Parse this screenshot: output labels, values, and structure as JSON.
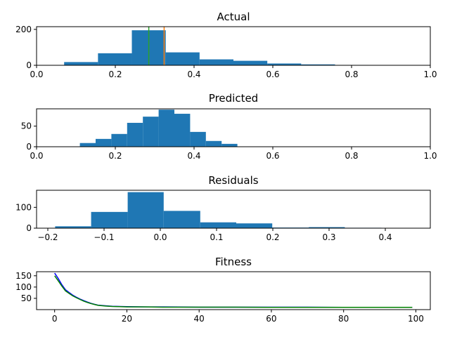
{
  "chart_data": [
    {
      "type": "histogram",
      "title": "Actual",
      "xlim": [
        0,
        1
      ],
      "ylim": [
        0,
        215
      ],
      "xticks": [
        0.0,
        0.2,
        0.4,
        0.6,
        0.8,
        1.0
      ],
      "xtick_labels": [
        "0.0",
        "0.2",
        "0.4",
        "0.6",
        "0.8",
        "1.0"
      ],
      "yticks": [
        0,
        200
      ],
      "ytick_labels": [
        "0",
        "200"
      ],
      "bins": [
        0.07,
        0.156,
        0.242,
        0.328,
        0.414,
        0.5,
        0.586,
        0.672,
        0.758,
        0.844,
        0.93
      ],
      "counts": [
        18,
        67,
        195,
        72,
        33,
        25,
        10,
        5,
        2,
        1
      ],
      "bar_color": "#1f77b4",
      "vlines": [
        {
          "x": 0.285,
          "color": "#2ca02c"
        },
        {
          "x": 0.324,
          "color": "#ff7f0e"
        }
      ]
    },
    {
      "type": "histogram",
      "title": "Predicted",
      "xlim": [
        0,
        1
      ],
      "ylim": [
        0,
        92
      ],
      "xticks": [
        0.0,
        0.2,
        0.4,
        0.6,
        0.8,
        1.0
      ],
      "xtick_labels": [
        "0.0",
        "0.2",
        "0.4",
        "0.6",
        "0.8",
        "1.0"
      ],
      "yticks": [
        0,
        50
      ],
      "ytick_labels": [
        "0",
        "50"
      ],
      "bins": [
        0.11,
        0.15,
        0.19,
        0.23,
        0.27,
        0.31,
        0.35,
        0.39,
        0.43,
        0.47,
        0.51
      ],
      "counts": [
        9,
        19,
        31,
        58,
        73,
        90,
        80,
        36,
        14,
        7
      ],
      "bar_color": "#1f77b4"
    },
    {
      "type": "histogram",
      "title": "Residuals",
      "xlim": [
        -0.22,
        0.48
      ],
      "ylim": [
        0,
        182
      ],
      "xticks": [
        -0.2,
        -0.1,
        0.0,
        0.1,
        0.2,
        0.3,
        0.4
      ],
      "xtick_labels": [
        "−0.2",
        "−0.1",
        "0.0",
        "0.1",
        "0.2",
        "0.3",
        "0.4"
      ],
      "yticks": [
        0,
        100
      ],
      "ytick_labels": [
        "0",
        "100"
      ],
      "bins": [
        -0.187,
        -0.123,
        -0.058,
        0.006,
        0.071,
        0.135,
        0.199,
        0.264,
        0.328,
        0.393,
        0.457
      ],
      "counts": [
        9,
        78,
        173,
        83,
        28,
        23,
        3,
        5,
        2,
        1
      ],
      "bar_color": "#1f77b4"
    },
    {
      "type": "line",
      "title": "Fitness",
      "xlim": [
        -5,
        104
      ],
      "ylim": [
        0,
        168
      ],
      "xticks": [
        0,
        20,
        40,
        60,
        80,
        100
      ],
      "xtick_labels": [
        "0",
        "20",
        "40",
        "60",
        "80",
        "100"
      ],
      "yticks": [
        50,
        100,
        150
      ],
      "ytick_labels": [
        "50",
        "100",
        "150"
      ],
      "series": [
        {
          "name": "series-blue",
          "color": "#0000ff",
          "x": [
            0,
            1,
            2,
            3,
            4,
            5,
            6,
            7,
            8,
            9,
            10,
            11,
            12,
            14,
            16,
            18,
            20,
            25,
            30,
            40,
            50,
            60,
            70,
            80,
            90,
            99
          ],
          "y": [
            162,
            138,
            110,
            88,
            76,
            64,
            55,
            47,
            40,
            34,
            28,
            24,
            20,
            17,
            15,
            14,
            13,
            12,
            12,
            11,
            11,
            11,
            11,
            10,
            10,
            10
          ]
        },
        {
          "name": "series-green",
          "color": "#008000",
          "x": [
            0,
            1,
            2,
            3,
            4,
            5,
            6,
            7,
            8,
            9,
            10,
            11,
            12,
            14,
            16,
            18,
            20,
            25,
            30,
            40,
            50,
            60,
            70,
            80,
            90,
            99
          ],
          "y": [
            150,
            128,
            104,
            83,
            72,
            61,
            53,
            45,
            38,
            32,
            27,
            23,
            19,
            16,
            14,
            13,
            12,
            12,
            11,
            11,
            11,
            10,
            10,
            10,
            10,
            10
          ]
        }
      ]
    }
  ]
}
